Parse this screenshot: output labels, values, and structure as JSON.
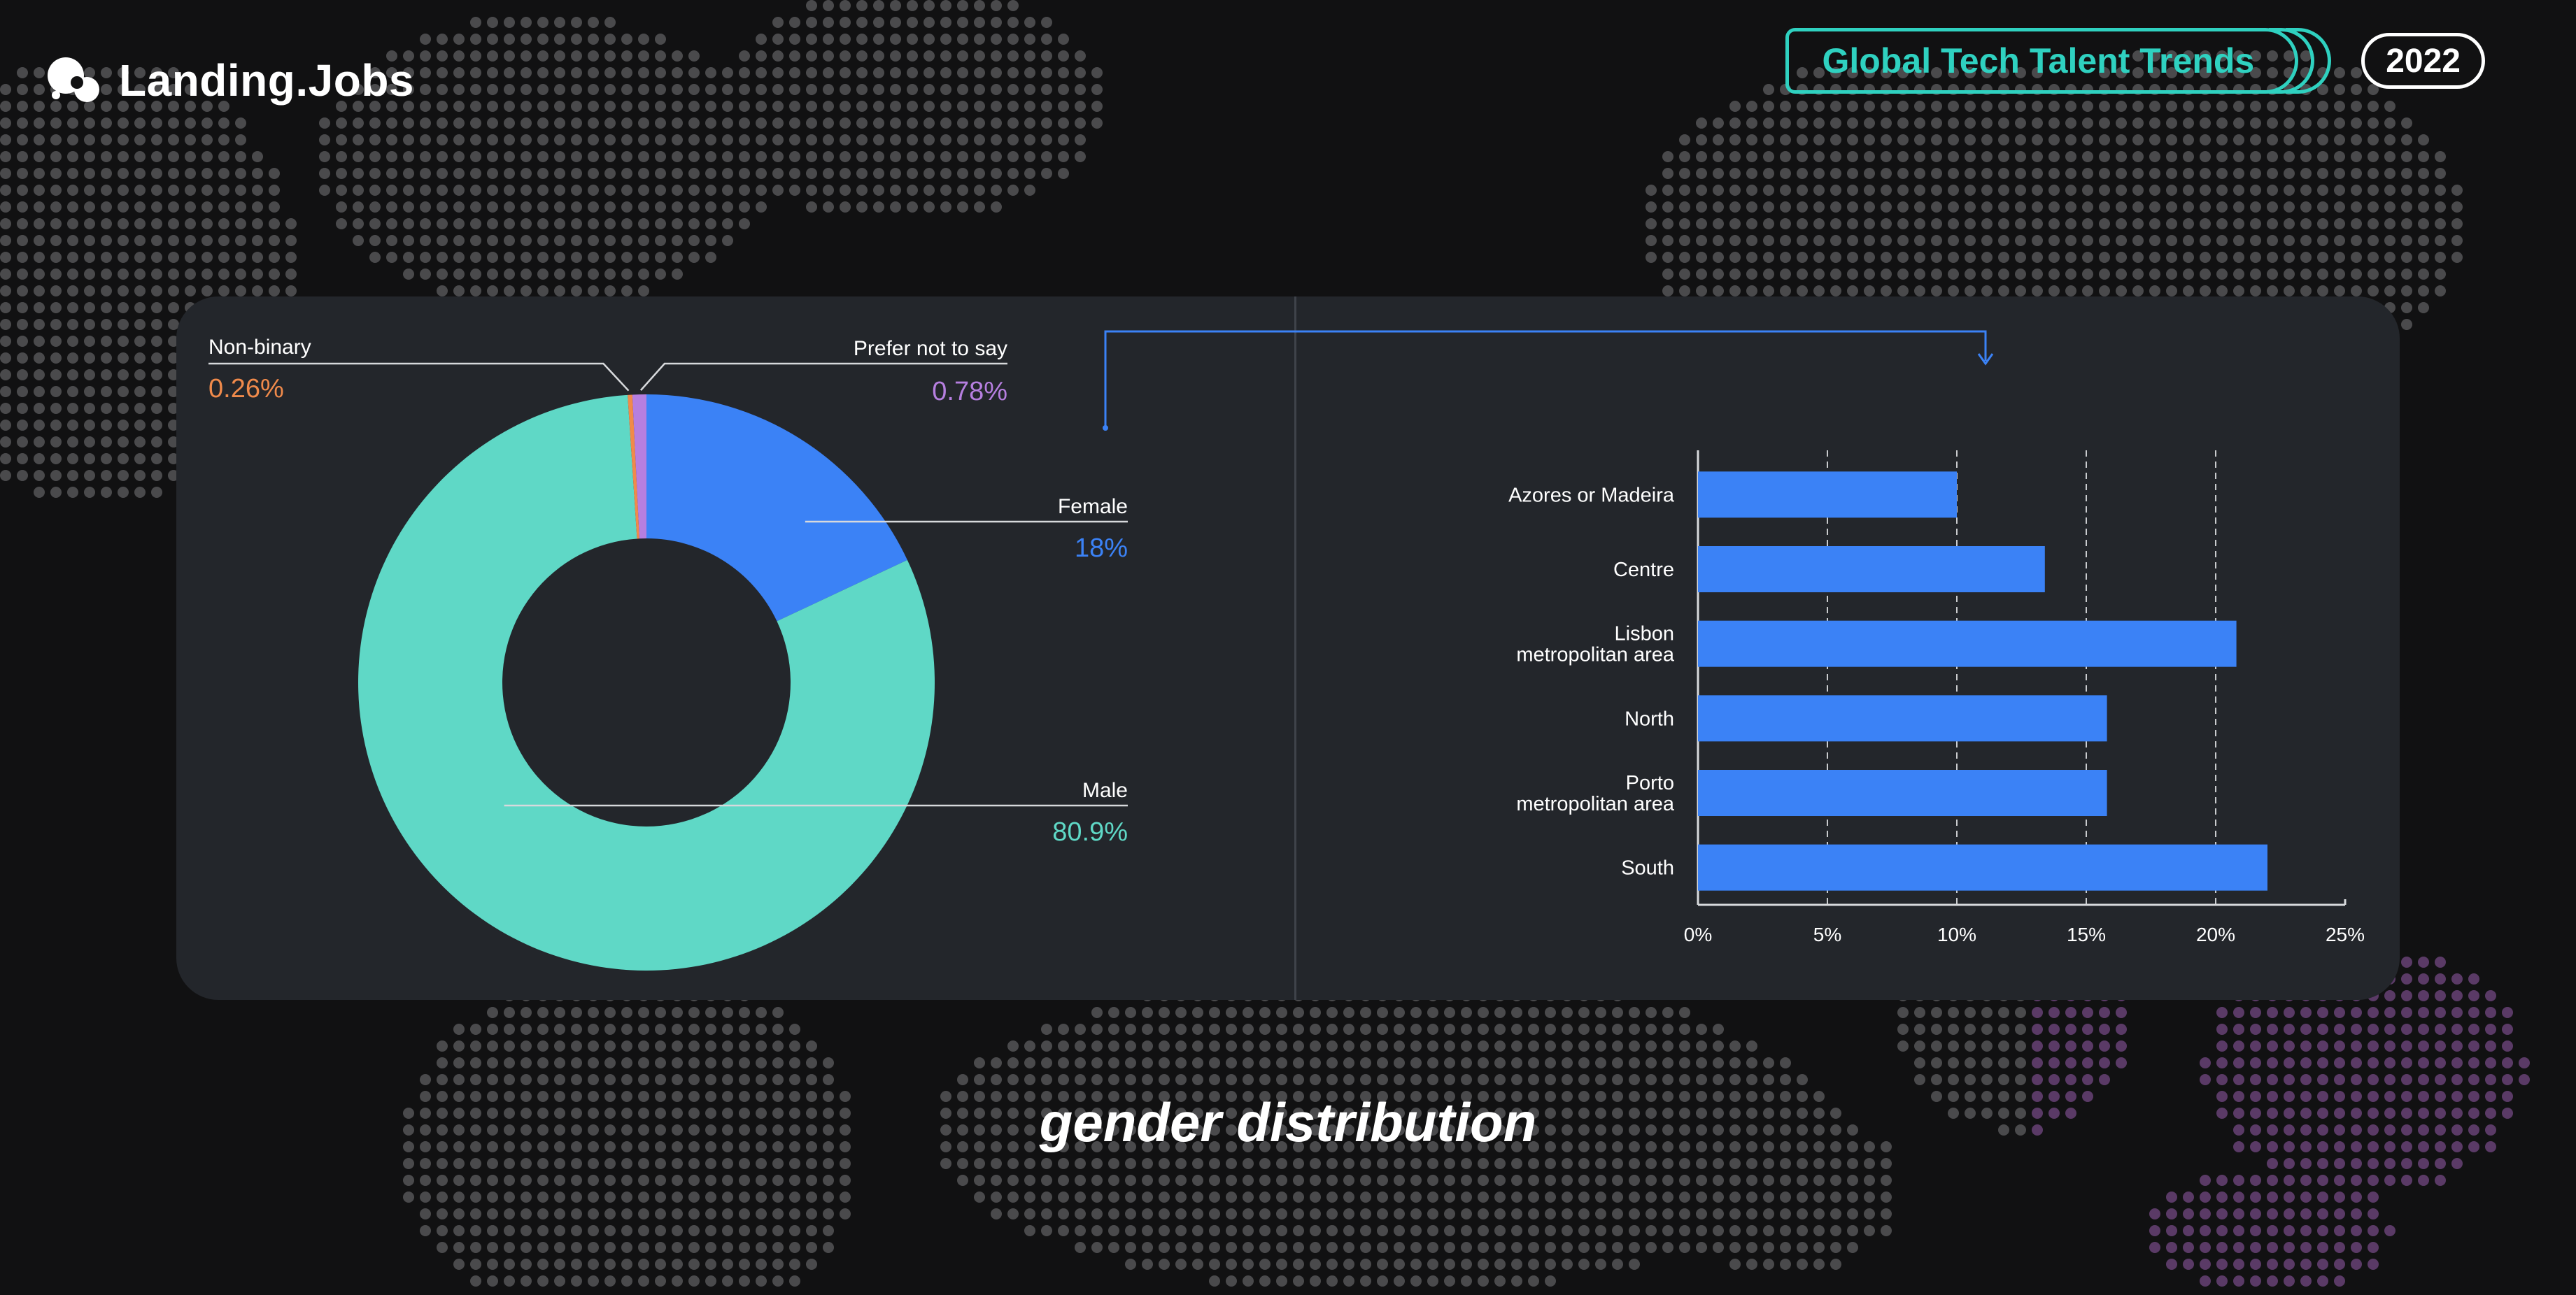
{
  "brand": {
    "name": "Landing.Jobs"
  },
  "header": {
    "report_title": "Global Tech Talent Trends",
    "year": "2022"
  },
  "caption": "gender distribution",
  "colors": {
    "female": "#3b82f6",
    "male": "#5fd8c6",
    "non_binary": "#f08a4b",
    "prefer_not_to_say": "#b67fe0",
    "bar": "#3b82f6",
    "card": "#23262b",
    "accent": "#2fd1c0"
  },
  "chart_data": [
    {
      "type": "pie",
      "donut": true,
      "labels": [
        "Female",
        "Male",
        "Non-binary",
        "Prefer not to say"
      ],
      "values": [
        18,
        80.9,
        0.26,
        0.78
      ],
      "value_labels": [
        "18%",
        "80.9%",
        "0.26%",
        "0.78%"
      ]
    },
    {
      "type": "bar",
      "orientation": "horizontal",
      "categories": [
        "Azores or Madeira",
        "Centre",
        "Lisbon metropolitan area",
        "North",
        "Porto metropolitan area",
        "South"
      ],
      "category_lines": [
        [
          "Azores or Madeira"
        ],
        [
          "Centre"
        ],
        [
          "Lisbon",
          "metropolitan area"
        ],
        [
          "North"
        ],
        [
          "Porto",
          "metropolitan area"
        ],
        [
          "South"
        ]
      ],
      "values": [
        10,
        13.4,
        20.8,
        15.8,
        15.8,
        22
      ],
      "xlim": [
        0,
        25
      ],
      "xticks": [
        "0%",
        "5%",
        "10%",
        "15%",
        "20%",
        "25%"
      ],
      "grid": "vertical dashed"
    }
  ]
}
